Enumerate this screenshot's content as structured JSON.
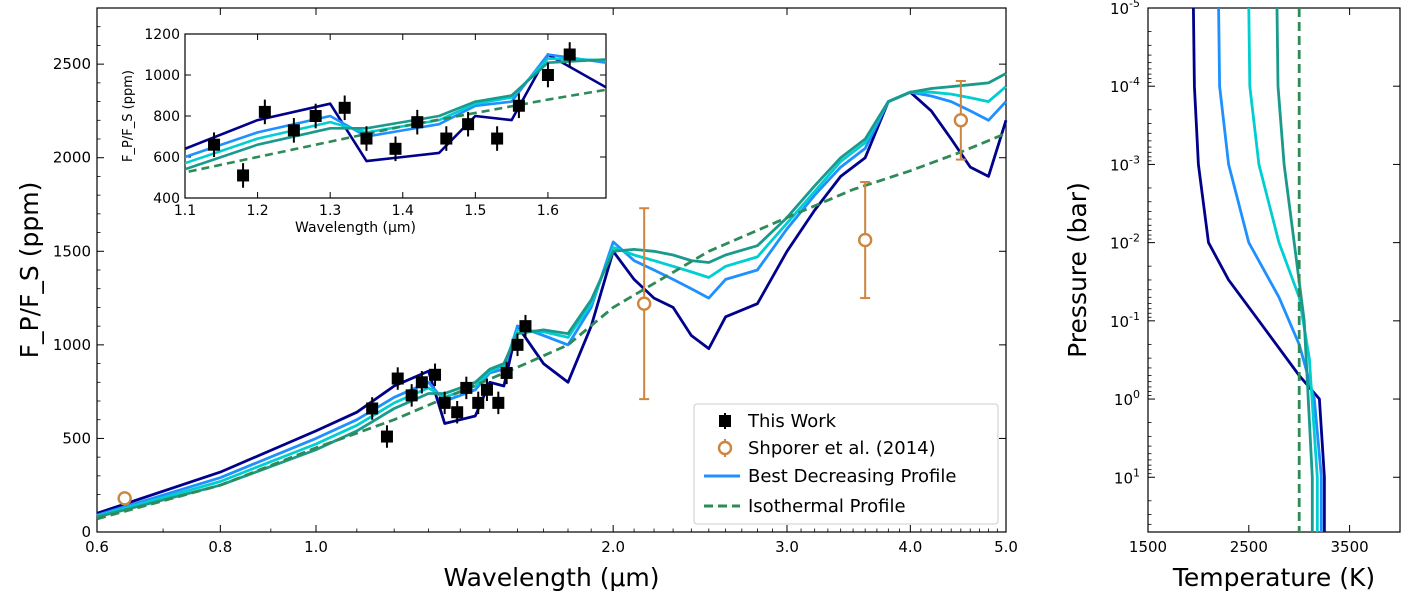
{
  "chart_data": [
    {
      "id": "main",
      "type": "line",
      "xlabel": "Wavelength (μm)",
      "ylabel": "F_P/F_S (ppm)",
      "xscale": "log",
      "xlim": [
        0.6,
        5.0
      ],
      "ylim": [
        0,
        2800
      ],
      "x_ticks": [
        0.6,
        0.8,
        1.0,
        2.0,
        3.0,
        4.0,
        5.0
      ],
      "x_tick_labels": [
        "0.6",
        "0.8",
        "1.0",
        "2.0",
        "3.0",
        "4.0",
        "5.0"
      ],
      "y_ticks": [
        0,
        500,
        1000,
        1500,
        2000,
        2500
      ],
      "y_tick_labels": [
        "0",
        "500",
        "1000",
        "1500",
        "2000",
        "2500"
      ],
      "legend": {
        "placement": "lower-right",
        "entries": [
          "This Work",
          "Shporer et al. (2014)",
          "Best Decreasing Profile",
          "Isothermal Profile"
        ]
      },
      "series": [
        {
          "color": "#00008b",
          "x": [
            0.6,
            0.8,
            1.0,
            1.1,
            1.2,
            1.3,
            1.35,
            1.4,
            1.45,
            1.5,
            1.55,
            1.6,
            1.7,
            1.8,
            1.9,
            2.0,
            2.1,
            2.2,
            2.3,
            2.4,
            2.5,
            2.6,
            2.8,
            3.0,
            3.2,
            3.4,
            3.6,
            3.8,
            4.0,
            4.2,
            4.4,
            4.6,
            4.8,
            5.0
          ],
          "y": [
            100,
            320,
            540,
            640,
            780,
            860,
            580,
            600,
            620,
            800,
            780,
            1100,
            900,
            800,
            1100,
            1500,
            1350,
            1250,
            1200,
            1050,
            980,
            1150,
            1220,
            1500,
            1720,
            1900,
            2000,
            2300,
            2350,
            2250,
            2100,
            1950,
            1900,
            2200
          ]
        },
        {
          "color": "#1e90ff",
          "x": [
            0.6,
            0.8,
            1.0,
            1.1,
            1.2,
            1.3,
            1.35,
            1.4,
            1.45,
            1.5,
            1.55,
            1.6,
            1.7,
            1.8,
            1.9,
            2.0,
            2.1,
            2.2,
            2.3,
            2.4,
            2.5,
            2.6,
            2.8,
            3.0,
            3.2,
            3.4,
            3.6,
            3.8,
            4.0,
            4.2,
            4.4,
            4.6,
            4.8,
            5.0
          ],
          "y": [
            90,
            290,
            500,
            600,
            720,
            800,
            700,
            730,
            760,
            850,
            870,
            1100,
            1050,
            1000,
            1200,
            1550,
            1450,
            1400,
            1350,
            1300,
            1250,
            1350,
            1400,
            1620,
            1800,
            1950,
            2050,
            2300,
            2350,
            2330,
            2300,
            2250,
            2200,
            2300
          ]
        },
        {
          "color": "#00ced1",
          "x": [
            0.6,
            0.8,
            1.0,
            1.1,
            1.2,
            1.3,
            1.35,
            1.4,
            1.45,
            1.5,
            1.55,
            1.6,
            1.7,
            1.8,
            1.9,
            2.0,
            2.1,
            2.2,
            2.3,
            2.4,
            2.5,
            2.6,
            2.8,
            3.0,
            3.2,
            3.4,
            3.6,
            3.8,
            4.0,
            4.2,
            4.4,
            4.6,
            4.8,
            5.0
          ],
          "y": [
            85,
            270,
            470,
            570,
            690,
            770,
            720,
            750,
            780,
            860,
            890,
            1080,
            1070,
            1040,
            1220,
            1520,
            1480,
            1450,
            1420,
            1390,
            1360,
            1420,
            1470,
            1650,
            1820,
            1980,
            2080,
            2300,
            2350,
            2350,
            2340,
            2320,
            2300,
            2380
          ]
        },
        {
          "color": "#1a9a8c",
          "x": [
            0.6,
            0.8,
            1.0,
            1.1,
            1.2,
            1.3,
            1.35,
            1.4,
            1.45,
            1.5,
            1.55,
            1.6,
            1.7,
            1.8,
            1.9,
            2.0,
            2.1,
            2.2,
            2.3,
            2.4,
            2.5,
            2.6,
            2.8,
            3.0,
            3.2,
            3.4,
            3.6,
            3.8,
            4.0,
            4.2,
            4.4,
            4.6,
            4.8,
            5.0
          ],
          "y": [
            80,
            250,
            440,
            540,
            660,
            740,
            740,
            770,
            800,
            870,
            900,
            1060,
            1080,
            1060,
            1240,
            1500,
            1510,
            1500,
            1480,
            1450,
            1440,
            1480,
            1530,
            1680,
            1850,
            2000,
            2100,
            2300,
            2350,
            2370,
            2380,
            2390,
            2400,
            2450
          ]
        },
        {
          "color": "#2e8b57",
          "dash": true,
          "x": [
            0.6,
            0.8,
            1.0,
            1.2,
            1.4,
            1.6,
            1.8,
            2.0,
            2.5,
            3.0,
            3.5,
            4.0,
            4.5,
            5.0
          ],
          "y": [
            70,
            250,
            450,
            600,
            750,
            880,
            1000,
            1200,
            1500,
            1680,
            1830,
            1930,
            2030,
            2130
          ]
        }
      ],
      "this_work": {
        "x": [
          1.14,
          1.18,
          1.21,
          1.25,
          1.28,
          1.32,
          1.35,
          1.39,
          1.42,
          1.46,
          1.49,
          1.53,
          1.56,
          1.6,
          1.63
        ],
        "y": [
          660,
          510,
          820,
          730,
          800,
          840,
          690,
          640,
          770,
          690,
          760,
          690,
          850,
          1000,
          1100
        ],
        "err": [
          60,
          60,
          60,
          60,
          60,
          60,
          60,
          60,
          60,
          60,
          60,
          60,
          60,
          60,
          60
        ]
      },
      "shporer": {
        "x": [
          0.64,
          2.15,
          3.6,
          4.5
        ],
        "y": [
          180,
          1220,
          1560,
          2200
        ],
        "err": [
          0,
          510,
          310,
          210
        ]
      }
    },
    {
      "id": "inset",
      "type": "line",
      "xlabel": "Wavelength (μm)",
      "ylabel": "F_P/F_S (ppm)",
      "xlim": [
        1.1,
        1.68
      ],
      "ylim": [
        400,
        1200
      ],
      "x_ticks": [
        1.1,
        1.2,
        1.3,
        1.4,
        1.5,
        1.6
      ],
      "x_tick_labels": [
        "1.1",
        "1.2",
        "1.3",
        "1.4",
        "1.5",
        "1.6"
      ],
      "y_ticks": [
        400,
        600,
        800,
        1000,
        1200
      ],
      "y_tick_labels": [
        "400",
        "600",
        "800",
        "1000",
        "1200"
      ]
    },
    {
      "id": "pt",
      "type": "line",
      "xlabel": "Temperature (K)",
      "ylabel": "Pressure (bar)",
      "yscale": "log",
      "yinverted": true,
      "xlim": [
        1500,
        4000
      ],
      "ylim": [
        100000,
        1e-05
      ],
      "x_ticks": [
        1500,
        2500,
        3500
      ],
      "x_tick_labels": [
        "1500",
        "2500",
        "3500"
      ],
      "y_ticks": [
        1e-05,
        0.0001,
        0.001,
        0.01,
        0.1,
        1,
        10
      ],
      "y_tick_labels": [
        "10^-5",
        "10^-4",
        "10^-3",
        "10^-2",
        "10^-1",
        "10^0",
        "10^1"
      ],
      "series": [
        {
          "color": "#00008b",
          "T": [
            1950,
            1960,
            2000,
            2100,
            2300,
            2600,
            3000,
            3200,
            3250
          ],
          "P": [
            1e-05,
            0.0001,
            0.001,
            0.01,
            0.03,
            0.1,
            0.5,
            1,
            10
          ]
        },
        {
          "color": "#1e90ff",
          "T": [
            2200,
            2210,
            2300,
            2500,
            2800,
            3000,
            3150,
            3220
          ],
          "P": [
            1e-05,
            0.0001,
            0.001,
            0.01,
            0.05,
            0.2,
            1,
            10
          ]
        },
        {
          "color": "#00ced1",
          "T": [
            2500,
            2510,
            2600,
            2800,
            3000,
            3100,
            3180
          ],
          "P": [
            1e-05,
            0.0001,
            0.001,
            0.01,
            0.05,
            0.3,
            10
          ]
        },
        {
          "color": "#1a9a8c",
          "T": [
            2780,
            2790,
            2850,
            2950,
            3050,
            3130
          ],
          "P": [
            1e-05,
            0.0001,
            0.001,
            0.01,
            0.1,
            10
          ]
        }
      ],
      "isothermal_T": 3000
    }
  ]
}
